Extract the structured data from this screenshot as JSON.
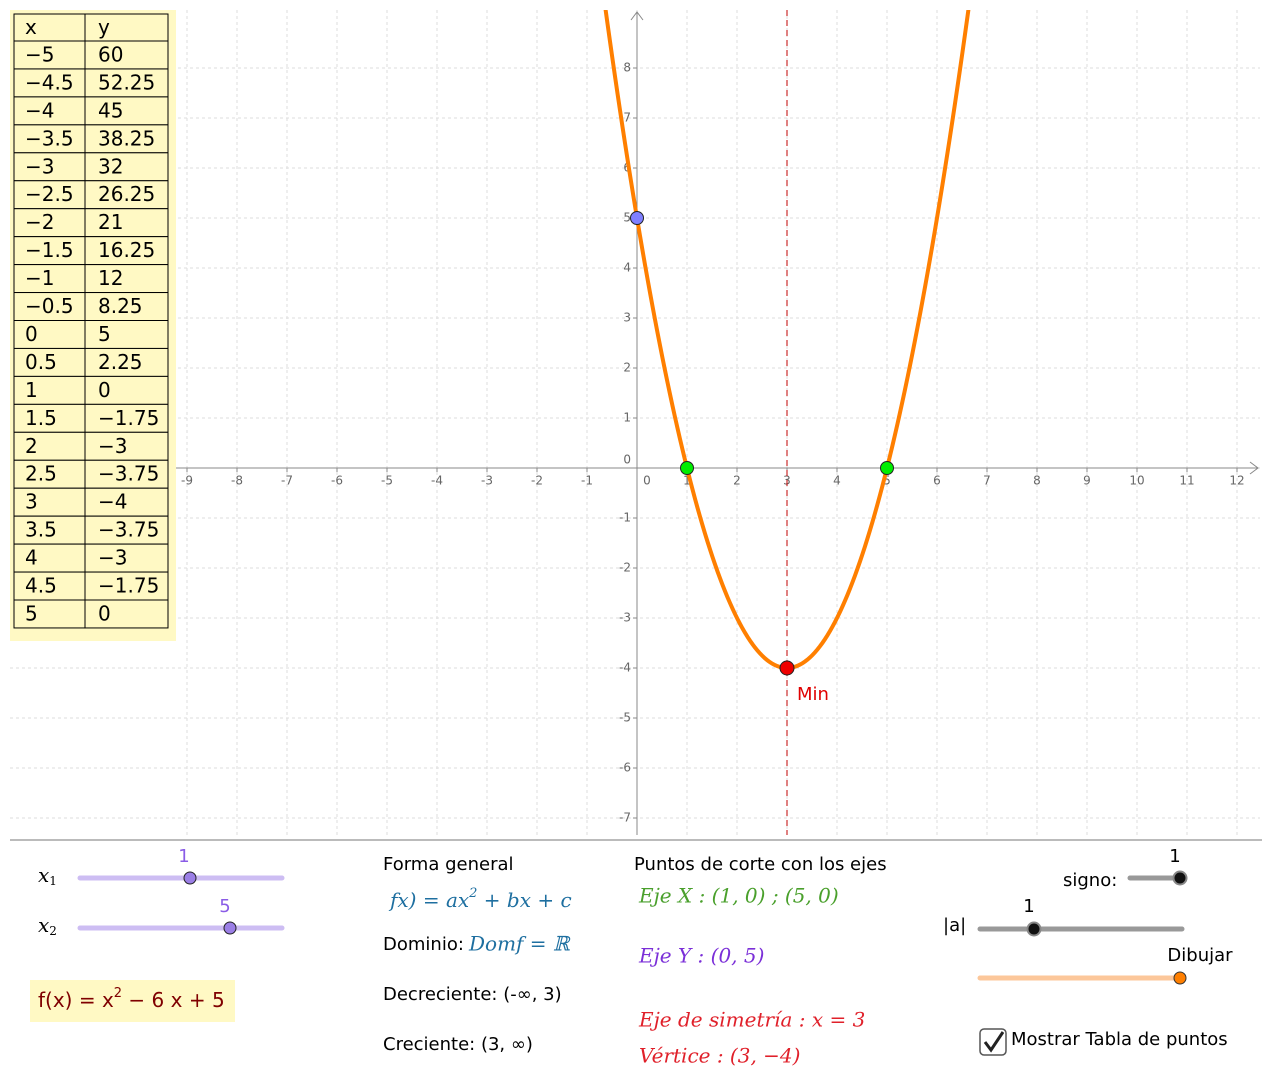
{
  "table": {
    "header": [
      "x",
      "y"
    ],
    "rows": [
      [
        "−5",
        "60"
      ],
      [
        "−4.5",
        "52.25"
      ],
      [
        "−4",
        "45"
      ],
      [
        "−3.5",
        "38.25"
      ],
      [
        "−3",
        "32"
      ],
      [
        "−2.5",
        "26.25"
      ],
      [
        "−2",
        "21"
      ],
      [
        "−1.5",
        "16.25"
      ],
      [
        "−1",
        "12"
      ],
      [
        "−0.5",
        "8.25"
      ],
      [
        "0",
        "5"
      ],
      [
        "0.5",
        "2.25"
      ],
      [
        "1",
        "0"
      ],
      [
        "1.5",
        "−1.75"
      ],
      [
        "2",
        "−3"
      ],
      [
        "2.5",
        "−3.75"
      ],
      [
        "3",
        "−4"
      ],
      [
        "3.5",
        "−3.75"
      ],
      [
        "4",
        "−3"
      ],
      [
        "4.5",
        "−1.75"
      ],
      [
        "5",
        "0"
      ]
    ]
  },
  "graph": {
    "xlim": [
      -12.54,
      12.46
    ],
    "ylim": [
      -7.34,
      9.16
    ],
    "xticks": [
      -9,
      -8,
      -7,
      -6,
      -5,
      -4,
      -3,
      -2,
      -1,
      0,
      1,
      2,
      3,
      4,
      5,
      6,
      7,
      8,
      9,
      10,
      11,
      12
    ],
    "yticks": [
      -7,
      -6,
      -5,
      -4,
      -3,
      -2,
      -1,
      0,
      1,
      2,
      3,
      4,
      5,
      6,
      7,
      8
    ],
    "grid": true,
    "function": {
      "a": 1,
      "b": -6,
      "c": 5,
      "color": "#ff7f00"
    },
    "x_intercepts": [
      [
        1,
        0
      ],
      [
        5,
        0
      ]
    ],
    "y_intercept": [
      0,
      5
    ],
    "vertex": {
      "x": 3,
      "y": -4,
      "label": "Min"
    },
    "symmetry_axis": 3
  },
  "panel": {
    "sliders": [
      {
        "name": "x",
        "sub": "1",
        "value": "1"
      },
      {
        "name": "x",
        "sub": "2",
        "value": "5"
      }
    ],
    "function_label": [
      "f(x) = x",
      "2",
      " − 6 x + 5"
    ],
    "general_form_title": "Forma general",
    "general_form": [
      "fx) = ax",
      "2",
      " + bx + c"
    ],
    "domain_label": "Dominio:",
    "domain": "Domf = ℝ",
    "decreasing": "Decreciente: (-∞, 3)",
    "increasing": "Creciente: (3, ∞)",
    "intercepts_title": "Puntos de corte con los ejes",
    "axis_x": "Eje X : (1, 0)  ; (5, 0)",
    "axis_y": "Eje Y : (0, 5)",
    "symmetry": "Eje de simetría :  x = 3",
    "vertex": "Vértice : (3, −4)",
    "sign_label": "signo:",
    "sign_value": "1",
    "abs_a_label": "|a|",
    "abs_a_value": "1",
    "draw_label": "Dibujar",
    "checkbox_label": "Mostrar Tabla de puntos"
  }
}
